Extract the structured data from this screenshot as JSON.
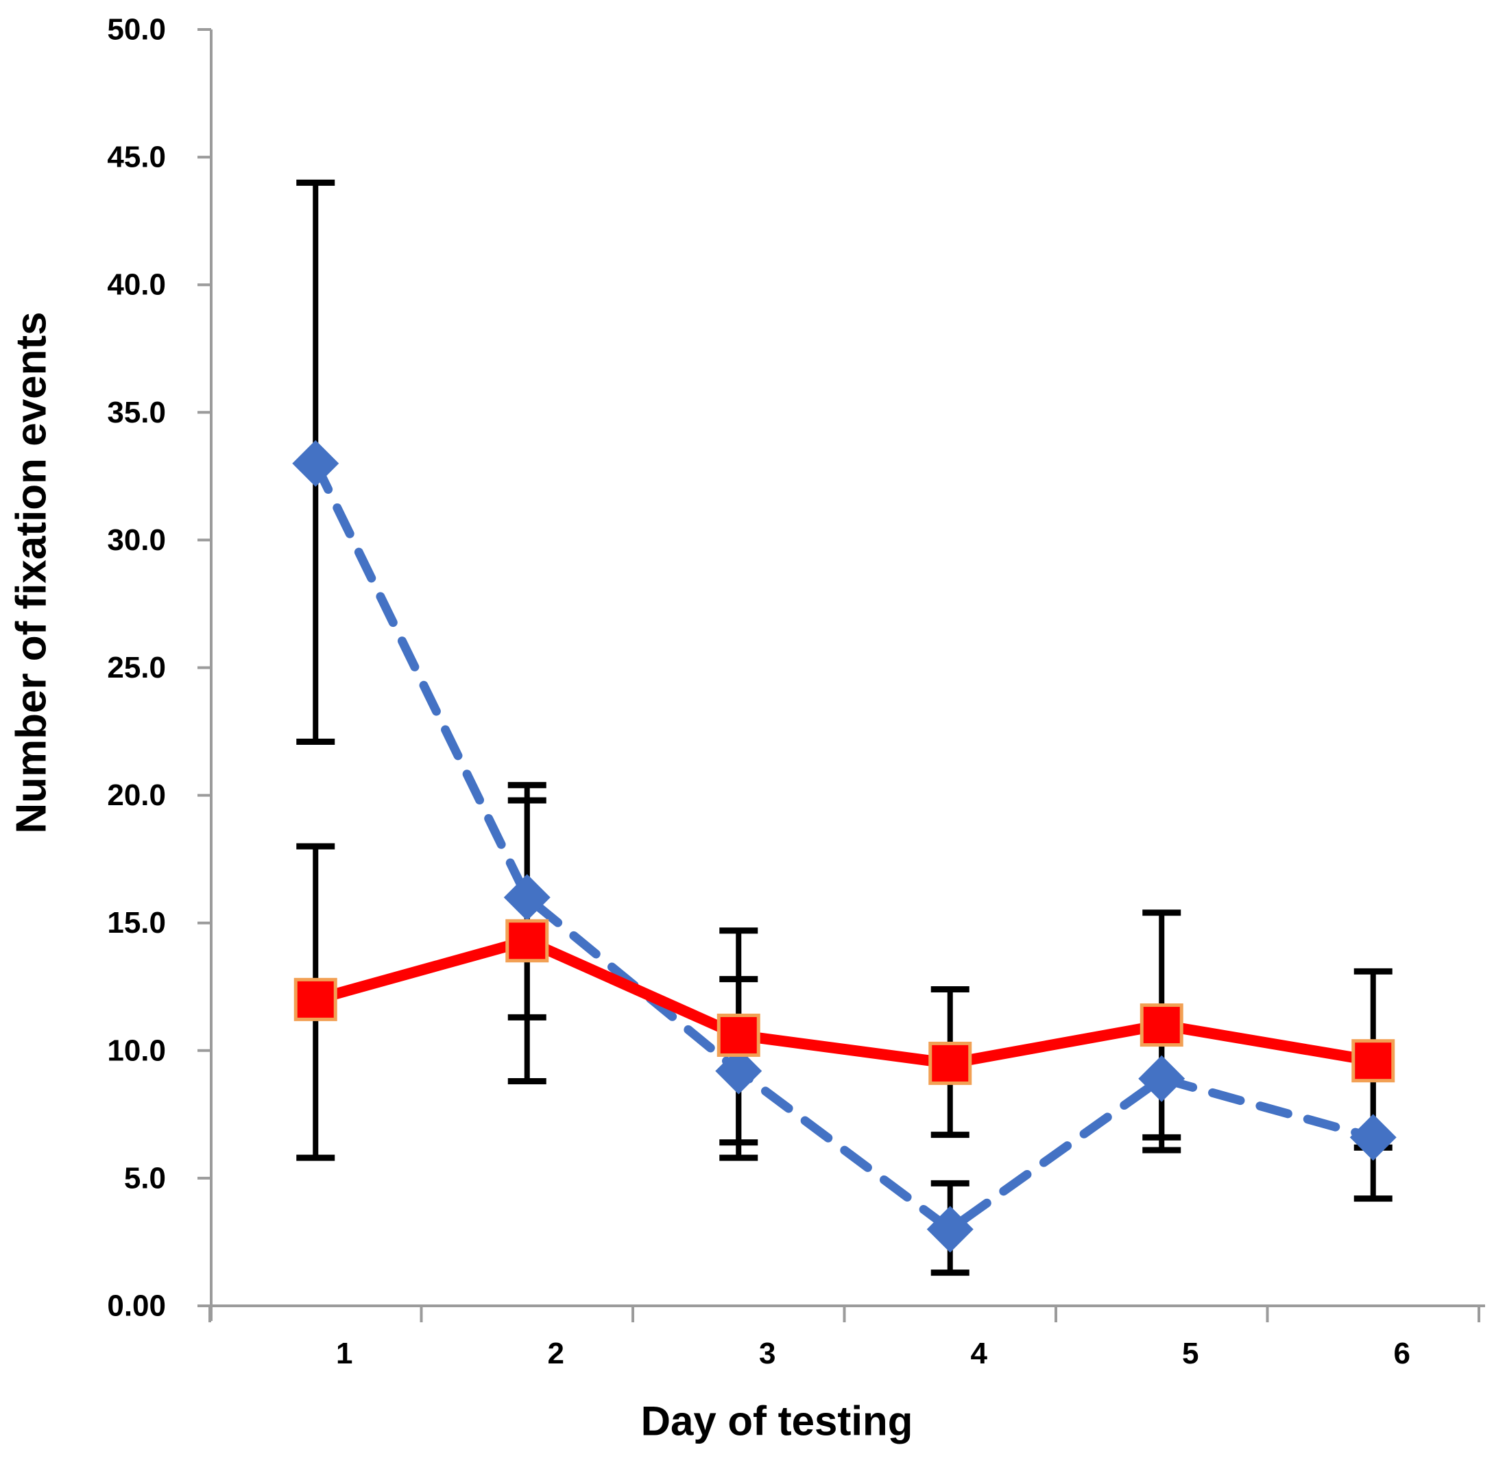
{
  "chart_data": {
    "type": "line",
    "title": "",
    "xlabel": "Day of testing",
    "ylabel": "Number of fixation events",
    "x": [
      1,
      2,
      3,
      4,
      5,
      6
    ],
    "x_tick_labels": [
      "1",
      "2",
      "3",
      "4",
      "5",
      "6"
    ],
    "y_tick_labels": [
      "0.00",
      "5.0",
      "10.0",
      "15.0",
      "20.0",
      "25.0",
      "30.0",
      "35.0",
      "40.0",
      "45.0",
      "50.0"
    ],
    "y_tick_step": 5,
    "ylim": [
      0,
      50
    ],
    "grid": false,
    "legend": "none",
    "background_color": "#FFFFFF",
    "axis_color": "#9B9B9B",
    "error_bar_color": "#000000",
    "series": [
      {
        "name": "blue-diamond-dashed",
        "marker": "diamond",
        "line_style": "dashed",
        "color": "#4472C4",
        "values": [
          33.0,
          16.0,
          9.2,
          3.0,
          8.9,
          6.6
        ],
        "error_upper": [
          44.0,
          20.4,
          12.8,
          4.8,
          11.7,
          9.0
        ],
        "error_lower": [
          22.1,
          11.3,
          6.4,
          1.3,
          6.1,
          4.2
        ]
      },
      {
        "name": "red-square-solid",
        "marker": "square",
        "line_style": "solid",
        "color": "#FF0000",
        "marker_border": "#F2A054",
        "values": [
          12.0,
          14.3,
          10.6,
          9.5,
          11.0,
          9.6
        ],
        "error_upper": [
          18.0,
          19.8,
          14.7,
          12.4,
          15.4,
          13.1
        ],
        "error_lower": [
          5.8,
          8.8,
          5.8,
          6.7,
          6.6,
          6.2
        ]
      }
    ]
  }
}
